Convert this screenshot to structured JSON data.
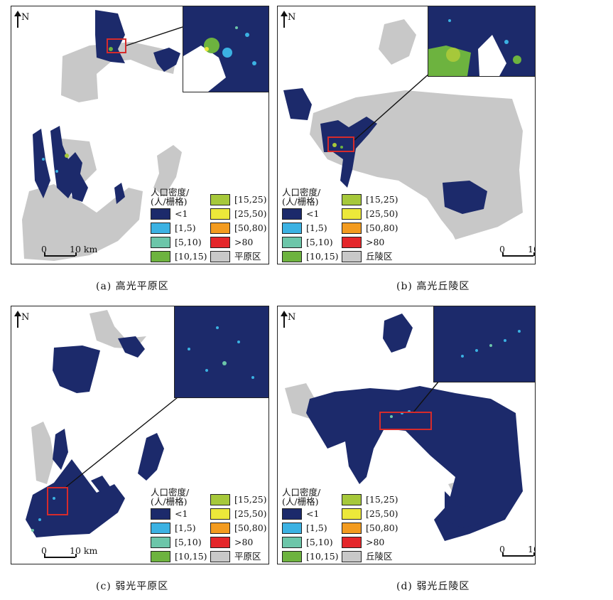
{
  "north_label": "N",
  "scale_zero": "0",
  "scale_ten": "10 km",
  "legend_title_line1": "人口密度/",
  "legend_title_line2": "(人/栅格)",
  "legend_classes": [
    "<1",
    "[1,5)",
    "[5,10)",
    "[10,15)",
    "[15,25)",
    "[25,50)",
    "[50,80)",
    ">80"
  ],
  "legend_colors": [
    "#1c2a6b",
    "#3bb2e3",
    "#6cc6a9",
    "#6db33f",
    "#a6c83a",
    "#ece83a",
    "#f39b1f",
    "#e4262a"
  ],
  "grey_color": "#c8c8c8",
  "panels": [
    {
      "caption": "(a) 高光平原区",
      "grey_label": "平原区"
    },
    {
      "caption": "(b) 高光丘陵区",
      "grey_label": "丘陵区"
    },
    {
      "caption": "(c) 弱光平原区",
      "grey_label": "平原区"
    },
    {
      "caption": "(d) 弱光丘陵区",
      "grey_label": "丘陵区"
    }
  ]
}
